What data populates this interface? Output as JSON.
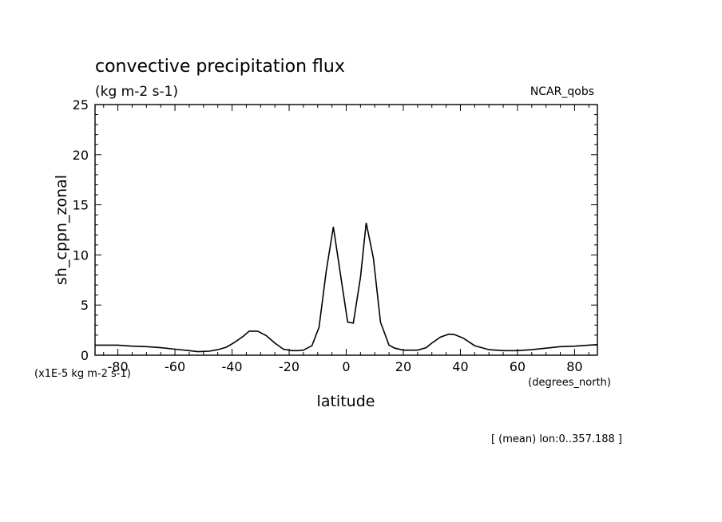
{
  "title": "convective precipitation flux",
  "units_label": "(kg m-2 s-1)",
  "dataset_label": "NCAR_qobs",
  "scale_note": "(x1E-5 kg m-2 s-1)",
  "x_units_note": "(degrees_north)",
  "footer_note": "[ (mean) lon:0..357.188 ]",
  "chart_data": {
    "type": "line",
    "title": "convective precipitation flux",
    "xlabel": "latitude",
    "ylabel": "sh_cppn_zonal",
    "xlim": [
      -88,
      88
    ],
    "ylim": [
      0,
      25
    ],
    "grid": false,
    "x_ticks": [
      -80,
      -60,
      -40,
      -20,
      0,
      20,
      40,
      60,
      80
    ],
    "x_tick_labels": [
      "-80",
      "-60",
      "-40",
      "-20",
      "0",
      "20",
      "40",
      "60",
      "80"
    ],
    "y_ticks": [
      0,
      5,
      10,
      15,
      20,
      25
    ],
    "y_tick_labels": [
      "0",
      "5",
      "10",
      "15",
      "20",
      "25"
    ],
    "series": [
      {
        "x": [
          -88,
          -85,
          -80,
          -75,
          -70,
          -65,
          -60,
          -55,
          -52,
          -48,
          -45,
          -42,
          -39,
          -36,
          -34,
          -31,
          -28,
          -25,
          -22,
          -19,
          -17,
          -15,
          -12,
          -9.5,
          -7,
          -4.5,
          -2,
          0.5,
          2.5,
          5,
          7,
          9.5,
          12,
          15,
          17,
          20,
          25,
          28,
          30,
          33,
          36,
          38,
          41,
          45,
          50,
          55,
          60,
          65,
          70,
          75,
          80,
          85,
          88
        ],
        "y": [
          1.0,
          1.0,
          1.0,
          0.9,
          0.85,
          0.75,
          0.6,
          0.45,
          0.35,
          0.4,
          0.55,
          0.8,
          1.3,
          1.9,
          2.4,
          2.4,
          1.95,
          1.2,
          0.6,
          0.45,
          0.45,
          0.5,
          0.95,
          2.8,
          8.4,
          12.8,
          8.0,
          3.3,
          3.2,
          7.8,
          13.2,
          9.7,
          3.3,
          1.0,
          0.7,
          0.5,
          0.5,
          0.75,
          1.2,
          1.8,
          2.1,
          2.05,
          1.7,
          0.95,
          0.55,
          0.45,
          0.45,
          0.55,
          0.7,
          0.85,
          0.9,
          1.0,
          1.05
        ]
      }
    ]
  }
}
